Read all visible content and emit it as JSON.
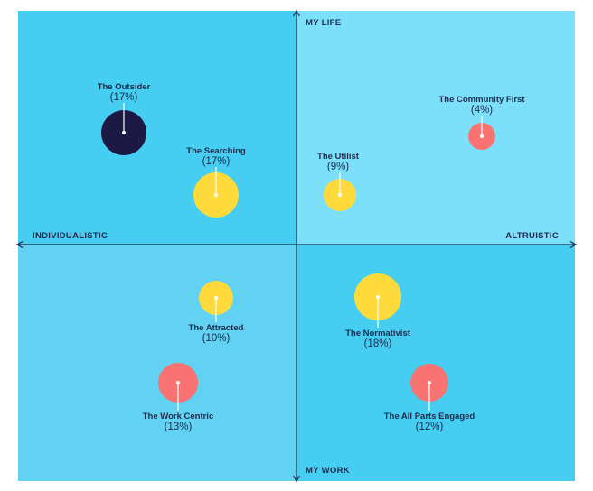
{
  "axes": {
    "top": "MY LIFE",
    "bottom": "MY WORK",
    "left": "INDIVIDUALISTIC",
    "right": "ALTRUISTIC"
  },
  "colors": {
    "quadrant_tl": "#46cdf2",
    "quadrant_tr": "#7de0fb",
    "quadrant_bl": "#62d2f3",
    "quadrant_br": "#46cdf2",
    "axis": "#1e2a4a",
    "navy": "#1c1a45",
    "yellow": "#fedb3a",
    "coral": "#f97373"
  },
  "segments": [
    {
      "name": "The Outsider",
      "pct": "(17%)",
      "color": "navy"
    },
    {
      "name": "The Searching",
      "pct": "(17%)",
      "color": "yellow"
    },
    {
      "name": "The Utilist",
      "pct": "(9%)",
      "color": "yellow"
    },
    {
      "name": "The Community First",
      "pct": "(4%)",
      "color": "coral"
    },
    {
      "name": "The Attracted",
      "pct": "(10%)",
      "color": "yellow"
    },
    {
      "name": "The Work Centric",
      "pct": "(13%)",
      "color": "coral"
    },
    {
      "name": "The Normativist",
      "pct": "(18%)",
      "color": "yellow"
    },
    {
      "name": "The All Parts Engaged",
      "pct": "(12%)",
      "color": "coral"
    }
  ]
}
